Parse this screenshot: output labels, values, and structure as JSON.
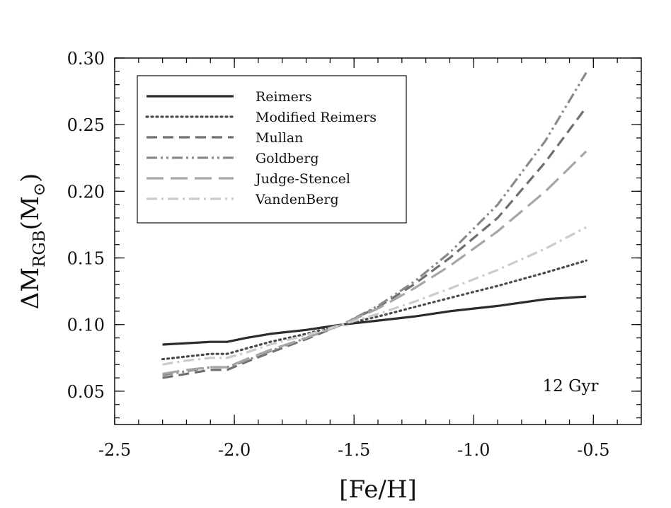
{
  "chart_data": {
    "type": "line",
    "title": "",
    "xlabel": "[Fe/H]",
    "ylabel": {
      "prefix": "ΔM",
      "subscript": "RGB",
      "unit_open": "(M",
      "unit_subscript": "⊙",
      "unit_close": ")"
    },
    "xlim": [
      -2.5,
      -0.3
    ],
    "ylim": [
      0.025,
      0.3
    ],
    "x_ticks": [
      "-2.5",
      "-2.0",
      "-1.5",
      "-1.0",
      "-0.5"
    ],
    "x_tick_values": [
      -2.5,
      -2.0,
      -1.5,
      -1.0,
      -0.5
    ],
    "y_ticks": [
      "0.05",
      "0.10",
      "0.15",
      "0.20",
      "0.25",
      "0.30"
    ],
    "y_tick_values": [
      0.05,
      0.1,
      0.15,
      0.2,
      0.25,
      0.3
    ],
    "grid": false,
    "legend_position": "top-left",
    "annotation": "12 Gyr",
    "series": [
      {
        "name": "Reimers",
        "color": "#2b2b2b",
        "style": "solid",
        "x": [
          -2.3,
          -2.2,
          -2.1,
          -2.03,
          -1.95,
          -1.85,
          -1.7,
          -1.55,
          -1.4,
          -1.25,
          -1.1,
          -0.9,
          -0.7,
          -0.53
        ],
        "y": [
          0.085,
          0.086,
          0.087,
          0.087,
          0.09,
          0.093,
          0.096,
          0.1,
          0.103,
          0.106,
          0.11,
          0.114,
          0.119,
          0.121
        ]
      },
      {
        "name": "Modified Reimers",
        "color": "#4a4a4a",
        "style": "dotted",
        "x": [
          -2.3,
          -2.2,
          -2.1,
          -2.03,
          -1.95,
          -1.85,
          -1.7,
          -1.55,
          -1.4,
          -1.25,
          -1.1,
          -0.9,
          -0.7,
          -0.53
        ],
        "y": [
          0.074,
          0.076,
          0.078,
          0.078,
          0.082,
          0.087,
          0.093,
          0.1,
          0.106,
          0.113,
          0.12,
          0.129,
          0.139,
          0.148
        ]
      },
      {
        "name": "Mullan",
        "color": "#6f6f6f",
        "style": "dashed",
        "x": [
          -2.3,
          -2.2,
          -2.1,
          -2.03,
          -1.95,
          -1.85,
          -1.7,
          -1.55,
          -1.4,
          -1.25,
          -1.1,
          -0.9,
          -0.7,
          -0.53
        ],
        "y": [
          0.06,
          0.063,
          0.066,
          0.066,
          0.072,
          0.079,
          0.089,
          0.1,
          0.113,
          0.13,
          0.15,
          0.18,
          0.222,
          0.263
        ]
      },
      {
        "name": "Goldberg",
        "color": "#8a8a8a",
        "style": "dashdotdot",
        "x": [
          -2.3,
          -2.2,
          -2.1,
          -2.03,
          -1.95,
          -1.85,
          -1.7,
          -1.55,
          -1.4,
          -1.25,
          -1.1,
          -0.9,
          -0.7,
          -0.53
        ],
        "y": [
          0.062,
          0.065,
          0.068,
          0.068,
          0.073,
          0.08,
          0.09,
          0.1,
          0.114,
          0.132,
          0.154,
          0.19,
          0.238,
          0.289
        ]
      },
      {
        "name": "Judge-Stencel",
        "color": "#a6a6a6",
        "style": "longdash",
        "x": [
          -2.3,
          -2.2,
          -2.1,
          -2.03,
          -1.95,
          -1.85,
          -1.7,
          -1.55,
          -1.4,
          -1.25,
          -1.1,
          -0.9,
          -0.7,
          -0.53
        ],
        "y": [
          0.063,
          0.066,
          0.068,
          0.068,
          0.074,
          0.081,
          0.09,
          0.1,
          0.112,
          0.127,
          0.144,
          0.17,
          0.2,
          0.23
        ]
      },
      {
        "name": "VandenBerg",
        "color": "#cbcbcb",
        "style": "dashdot",
        "x": [
          -2.3,
          -2.2,
          -2.1,
          -2.03,
          -1.95,
          -1.85,
          -1.7,
          -1.55,
          -1.4,
          -1.25,
          -1.1,
          -0.9,
          -0.7,
          -0.53
        ],
        "y": [
          0.07,
          0.073,
          0.075,
          0.075,
          0.079,
          0.085,
          0.092,
          0.1,
          0.108,
          0.117,
          0.127,
          0.141,
          0.157,
          0.173
        ]
      }
    ]
  }
}
